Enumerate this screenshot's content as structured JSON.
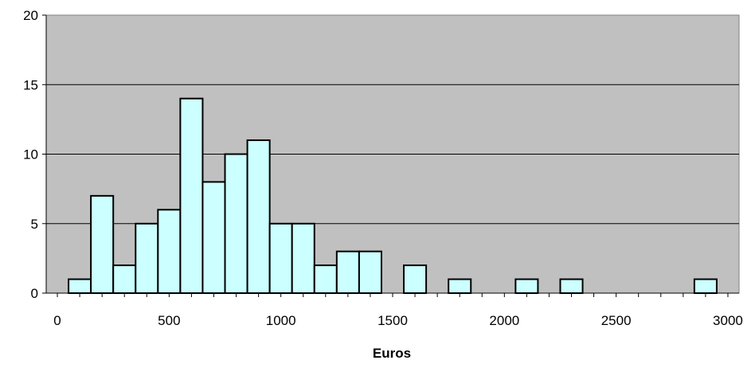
{
  "chart_data": {
    "type": "bar",
    "xlabel": "Euros",
    "ylabel": "",
    "ylim": [
      0,
      20
    ],
    "xlim": [
      -50,
      3050
    ],
    "yticks": [
      0,
      5,
      10,
      15,
      20
    ],
    "xticks": [
      0,
      500,
      1000,
      1500,
      2000,
      2500,
      3000
    ],
    "bin_width": 100,
    "bins": [
      {
        "x": 100,
        "value": 1
      },
      {
        "x": 200,
        "value": 7
      },
      {
        "x": 300,
        "value": 2
      },
      {
        "x": 400,
        "value": 5
      },
      {
        "x": 500,
        "value": 6
      },
      {
        "x": 600,
        "value": 14
      },
      {
        "x": 700,
        "value": 8
      },
      {
        "x": 800,
        "value": 10
      },
      {
        "x": 900,
        "value": 11
      },
      {
        "x": 1000,
        "value": 5
      },
      {
        "x": 1100,
        "value": 5
      },
      {
        "x": 1200,
        "value": 2
      },
      {
        "x": 1300,
        "value": 3
      },
      {
        "x": 1400,
        "value": 3
      },
      {
        "x": 1600,
        "value": 2
      },
      {
        "x": 1800,
        "value": 1
      },
      {
        "x": 2100,
        "value": 1
      },
      {
        "x": 2300,
        "value": 1
      },
      {
        "x": 2900,
        "value": 1
      }
    ],
    "plot_background": "#c0c0c0",
    "bar_fill": "#ccffff",
    "bar_stroke": "#000000",
    "grid": true
  }
}
